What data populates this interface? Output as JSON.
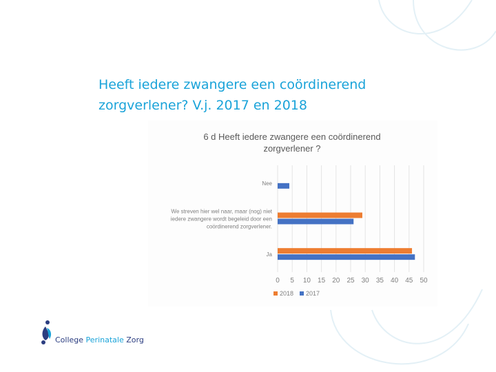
{
  "slide": {
    "title_line1": "Heeft iedere zwangere een coördinerend",
    "title_line2": "zorgverlener? V.j. 2017 en 2018"
  },
  "logo": {
    "part1": "College ",
    "part2": "Perinatale",
    "part3": " Zorg"
  },
  "colors": {
    "accent": "#1aa3d9",
    "series2018": "#ed7d31",
    "series2017": "#4472c4"
  },
  "chart_data": {
    "type": "bar",
    "orientation": "horizontal",
    "title_line1": "6 d Heeft iedere zwangere een coördinerend",
    "title_line2": "zorgverlener ?",
    "categories": [
      [
        "Nee"
      ],
      [
        "We streven hier wel naar, maar (nog) niet",
        "iedere zwangere wordt begeleid door een",
        "coördinerend zorgverlener."
      ],
      [
        "Ja"
      ]
    ],
    "series": [
      {
        "name": "2018",
        "color": "#ed7d31",
        "values": [
          0,
          29,
          46
        ]
      },
      {
        "name": "2017",
        "color": "#4472c4",
        "values": [
          4,
          26,
          47
        ]
      }
    ],
    "xlim": [
      0,
      50
    ],
    "xticks": [
      "0",
      "5",
      "10",
      "15",
      "20",
      "25",
      "30",
      "35",
      "40",
      "45",
      "50"
    ],
    "legend": [
      "2018",
      "2017"
    ],
    "legend_position": "bottom",
    "grid": true
  }
}
